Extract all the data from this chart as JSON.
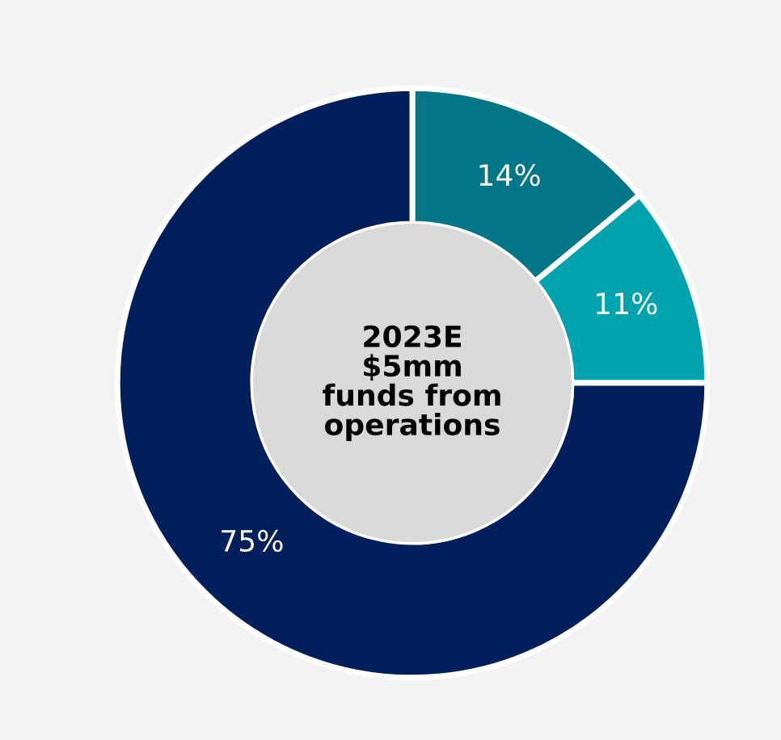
{
  "chart_data": {
    "type": "donut",
    "categories": [
      null,
      null,
      null
    ],
    "values": [
      14,
      11,
      75
    ],
    "colors": [
      "#007686",
      "#00a3ad",
      "#001f5b"
    ],
    "value_labels": [
      "14%",
      "11%",
      "75%"
    ],
    "annotations": [
      "2023E\n$5mm\nfunds from\noperations"
    ]
  }
}
